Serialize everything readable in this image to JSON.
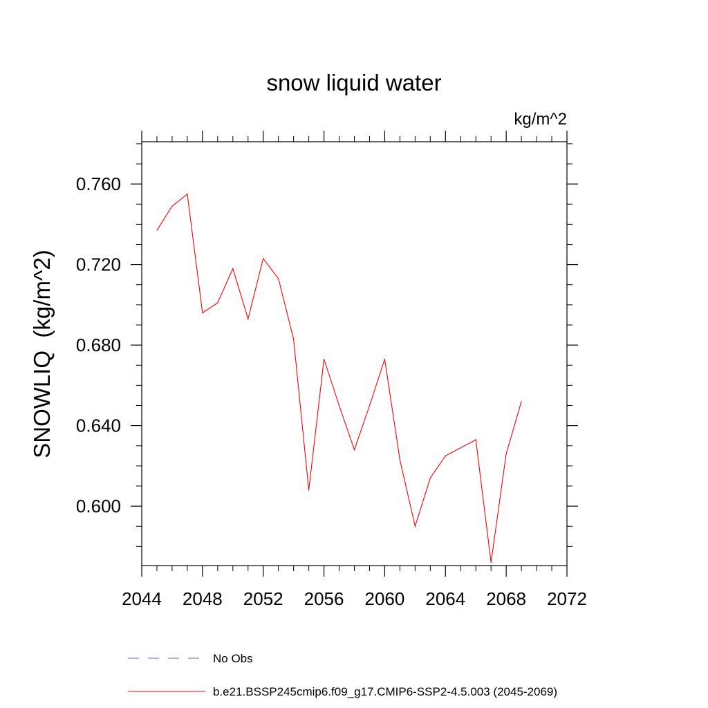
{
  "chart_data": {
    "type": "line",
    "title": "snow liquid water",
    "units_label": "kg/m^2",
    "xlabel": "",
    "ylabel": "SNOWLIQ  (kg/m^2)",
    "xlim": [
      2044,
      2072
    ],
    "ylim": [
      0.5705,
      0.781
    ],
    "x_ticks": [
      2044,
      2048,
      2052,
      2056,
      2060,
      2064,
      2068,
      2072
    ],
    "y_ticks": [
      0.6,
      0.64,
      0.68,
      0.72,
      0.76
    ],
    "y_tick_labels": [
      "0.600",
      "0.640",
      "0.680",
      "0.720",
      "0.760"
    ],
    "grid": false,
    "legend_position": "bottom",
    "series": [
      {
        "name": "No Obs",
        "color": "#6a5acd",
        "style": "dashed",
        "x": [],
        "y": []
      },
      {
        "name": "b.e21.BSSP245cmip6.f09_g17.CMIP6-SSP2-4.5.003 (2045-2069)",
        "color": "#ff0000",
        "style": "solid",
        "x": [
          2045,
          2046,
          2047,
          2048,
          2049,
          2050,
          2051,
          2052,
          2053,
          2054,
          2055,
          2056,
          2057,
          2058,
          2059,
          2060,
          2061,
          2062,
          2063,
          2064,
          2065,
          2066,
          2067,
          2068,
          2069
        ],
        "y": [
          0.737,
          0.749,
          0.755,
          0.696,
          0.701,
          0.718,
          0.693,
          0.723,
          0.713,
          0.683,
          0.608,
          0.673,
          0.65,
          0.628,
          0.65,
          0.673,
          0.623,
          0.59,
          0.614,
          0.625,
          0.629,
          0.633,
          0.572,
          0.626,
          0.652
        ]
      }
    ]
  }
}
